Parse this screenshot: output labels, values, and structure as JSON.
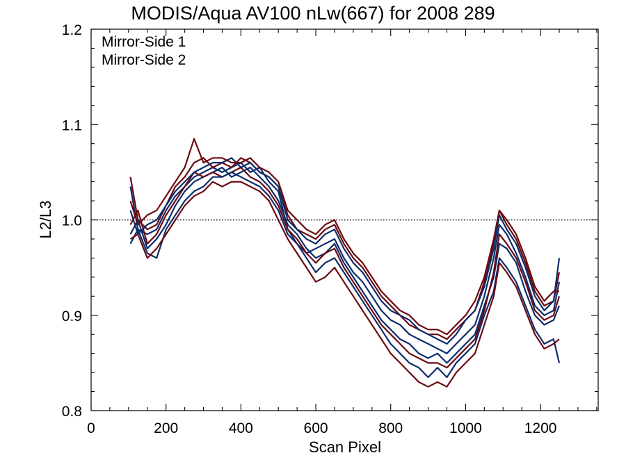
{
  "chart_data": {
    "type": "line",
    "title": "MODIS/Aqua AV100 nLw(667) for 2008 289",
    "xlabel": "Scan Pixel",
    "ylabel": "L2/L3",
    "xlim": [
      0,
      1354
    ],
    "ylim": [
      0.8,
      1.2
    ],
    "x_ticks": [
      "0",
      "200",
      "400",
      "600",
      "800",
      "1000",
      "1200"
    ],
    "y_ticks": [
      "0.8",
      "0.9",
      "1.0",
      "1.1",
      "1.2"
    ],
    "reference_line": 1.0,
    "grid": false,
    "legend": {
      "placement": "top-left"
    },
    "x": [
      105,
      125,
      150,
      175,
      200,
      225,
      250,
      275,
      300,
      325,
      350,
      375,
      400,
      425,
      450,
      475,
      500,
      525,
      550,
      575,
      600,
      625,
      650,
      675,
      700,
      725,
      750,
      775,
      800,
      825,
      850,
      875,
      900,
      925,
      950,
      975,
      1000,
      1025,
      1050,
      1075,
      1090,
      1110,
      1135,
      1160,
      1185,
      1210,
      1235,
      1250
    ],
    "series": [
      {
        "name": "Mirror-Side 1",
        "color": "#0d2c6c",
        "groups": [
          {
            "values": [
              1.035,
              0.99,
              0.985,
              0.99,
              1.01,
              1.025,
              1.035,
              1.045,
              1.05,
              1.055,
              1.05,
              1.055,
              1.06,
              1.05,
              1.055,
              1.04,
              1.03,
              0.99,
              0.975,
              0.965,
              0.97,
              0.975,
              0.98,
              0.96,
              0.945,
              0.935,
              0.92,
              0.905,
              0.895,
              0.89,
              0.88,
              0.875,
              0.87,
              0.865,
              0.86,
              0.87,
              0.88,
              0.89,
              0.92,
              0.96,
              0.995,
              0.985,
              0.965,
              0.94,
              0.91,
              0.9,
              0.905,
              0.935
            ]
          },
          {
            "values": [
              0.985,
              1.0,
              0.97,
              0.98,
              0.995,
              1.015,
              1.03,
              1.04,
              1.045,
              1.05,
              1.055,
              1.045,
              1.05,
              1.055,
              1.045,
              1.035,
              1.02,
              0.995,
              0.985,
              0.97,
              0.96,
              0.965,
              0.975,
              0.955,
              0.94,
              0.925,
              0.91,
              0.895,
              0.885,
              0.875,
              0.87,
              0.86,
              0.855,
              0.86,
              0.85,
              0.86,
              0.87,
              0.88,
              0.91,
              0.94,
              0.975,
              0.97,
              0.955,
              0.925,
              0.9,
              0.89,
              0.895,
              0.91
            ]
          },
          {
            "values": [
              0.975,
              0.99,
              0.965,
              0.96,
              0.99,
              1.005,
              1.02,
              1.03,
              1.035,
              1.045,
              1.045,
              1.05,
              1.045,
              1.04,
              1.035,
              1.025,
              1.01,
              0.985,
              0.975,
              0.96,
              0.945,
              0.955,
              0.96,
              0.945,
              0.93,
              0.915,
              0.9,
              0.885,
              0.87,
              0.86,
              0.85,
              0.845,
              0.835,
              0.845,
              0.835,
              0.85,
              0.86,
              0.87,
              0.9,
              0.925,
              0.96,
              0.95,
              0.935,
              0.91,
              0.885,
              0.87,
              0.875,
              0.85
            ]
          },
          {
            "values": [
              1.01,
              0.985,
              0.995,
              1.0,
              1.015,
              1.03,
              1.04,
              1.05,
              1.055,
              1.06,
              1.06,
              1.065,
              1.055,
              1.06,
              1.05,
              1.045,
              1.035,
              1.0,
              0.99,
              0.98,
              0.975,
              0.985,
              0.99,
              0.97,
              0.955,
              0.945,
              0.93,
              0.915,
              0.905,
              0.9,
              0.895,
              0.885,
              0.88,
              0.875,
              0.87,
              0.88,
              0.895,
              0.905,
              0.93,
              0.97,
              1.005,
              0.99,
              0.975,
              0.95,
              0.92,
              0.905,
              0.915,
              0.96
            ]
          }
        ]
      },
      {
        "name": "Mirror-Side 2",
        "color": "#6b0a10",
        "groups": [
          {
            "values": [
              1.045,
              1.0,
              0.99,
              0.995,
              1.015,
              1.035,
              1.045,
              1.06,
              1.065,
              1.055,
              1.06,
              1.055,
              1.065,
              1.06,
              1.05,
              1.045,
              1.035,
              1.005,
              0.99,
              0.985,
              0.98,
              0.99,
              0.995,
              0.975,
              0.96,
              0.95,
              0.935,
              0.92,
              0.91,
              0.9,
              0.89,
              0.885,
              0.88,
              0.88,
              0.875,
              0.885,
              0.895,
              0.905,
              0.935,
              0.975,
              1.01,
              0.995,
              0.98,
              0.955,
              0.925,
              0.91,
              0.915,
              0.945
            ]
          },
          {
            "values": [
              0.995,
              1.01,
              0.975,
              0.985,
              1.005,
              1.02,
              1.035,
              1.05,
              1.045,
              1.05,
              1.045,
              1.05,
              1.055,
              1.045,
              1.04,
              1.03,
              1.015,
              0.99,
              0.98,
              0.965,
              0.955,
              0.965,
              0.97,
              0.95,
              0.935,
              0.92,
              0.905,
              0.89,
              0.88,
              0.87,
              0.86,
              0.855,
              0.85,
              0.85,
              0.845,
              0.855,
              0.865,
              0.875,
              0.905,
              0.945,
              0.985,
              0.975,
              0.96,
              0.935,
              0.905,
              0.895,
              0.9,
              0.92
            ]
          },
          {
            "values": [
              0.98,
              0.985,
              0.96,
              0.97,
              0.985,
              1.0,
              1.015,
              1.025,
              1.03,
              1.04,
              1.035,
              1.04,
              1.04,
              1.035,
              1.03,
              1.02,
              1.0,
              0.98,
              0.965,
              0.95,
              0.935,
              0.94,
              0.95,
              0.935,
              0.92,
              0.905,
              0.89,
              0.875,
              0.86,
              0.85,
              0.84,
              0.83,
              0.825,
              0.83,
              0.825,
              0.84,
              0.85,
              0.86,
              0.89,
              0.92,
              0.955,
              0.945,
              0.93,
              0.905,
              0.88,
              0.865,
              0.87,
              0.875
            ]
          },
          {
            "values": [
              1.02,
              0.995,
              1.005,
              1.01,
              1.025,
              1.04,
              1.055,
              1.085,
              1.06,
              1.065,
              1.065,
              1.06,
              1.06,
              1.065,
              1.055,
              1.05,
              1.04,
              1.01,
              1.0,
              0.99,
              0.985,
              0.995,
              1.0,
              0.98,
              0.965,
              0.955,
              0.94,
              0.925,
              0.915,
              0.905,
              0.9,
              0.89,
              0.885,
              0.885,
              0.88,
              0.89,
              0.9,
              0.915,
              0.94,
              0.98,
              1.01,
              1.0,
              0.985,
              0.96,
              0.93,
              0.915,
              0.925,
              0.925
            ]
          }
        ]
      }
    ]
  }
}
